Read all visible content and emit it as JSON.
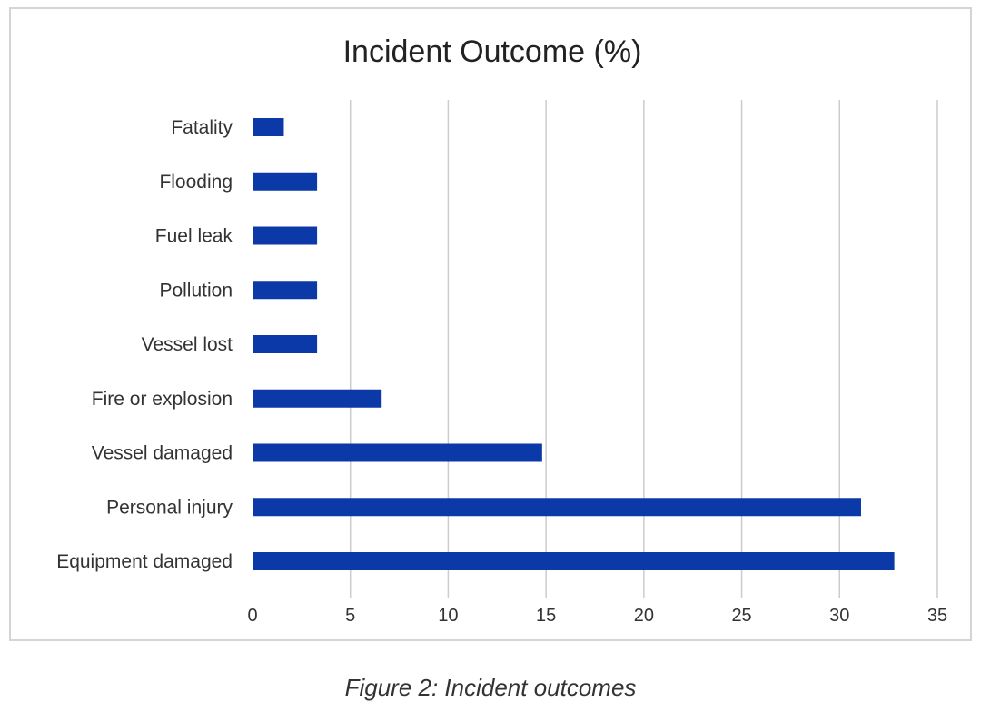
{
  "chart_data": {
    "type": "bar",
    "orientation": "horizontal",
    "title": "Incident Outcome (%)",
    "xlabel": "",
    "ylabel": "",
    "categories": [
      "Fatality",
      "Flooding",
      "Fuel leak",
      "Pollution",
      "Vessel lost",
      "Fire or explosion",
      "Vessel damaged",
      "Personal injury",
      "Equipment damaged"
    ],
    "values": [
      1.6,
      3.3,
      3.3,
      3.3,
      3.3,
      6.6,
      14.8,
      31.1,
      32.8
    ],
    "xlim": [
      0,
      35
    ],
    "x_ticks": [
      0,
      5,
      10,
      15,
      20,
      25,
      30,
      35
    ],
    "grid": "vertical",
    "legend": "none",
    "bar_color": "#0b3aa8"
  },
  "caption": "Figure 2: Incident outcomes"
}
